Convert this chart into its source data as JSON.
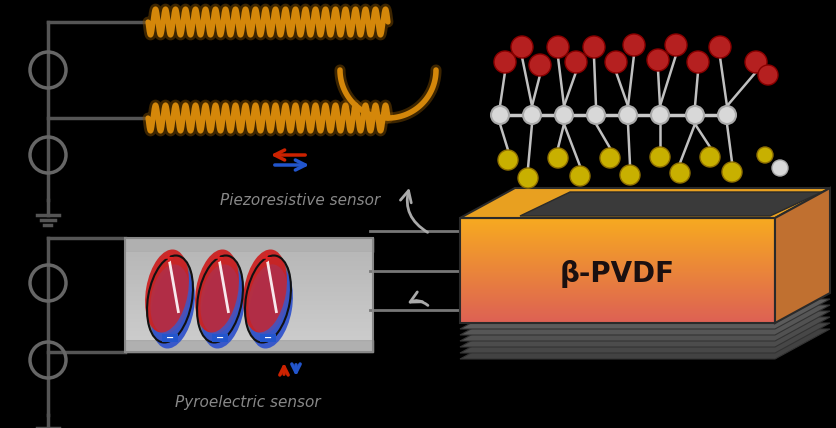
{
  "background_color": "#000000",
  "pvdf_label": "β-PVDF",
  "pvdf_label_fontsize": 20,
  "piezo_label": "Piezoresistive sensor",
  "pyro_label": "Pyroelectric sensor",
  "sensor_label_color": "#888888",
  "sensor_label_fontsize": 11,
  "coil_color": "#d4870a",
  "circuit_color": "#555555",
  "arrow_red": "#cc2200",
  "arrow_blue": "#2255cc",
  "curved_arrow_color": "#aaaaaa",
  "mol_red": "#b52020",
  "mol_yellow": "#c8b000",
  "mol_white": "#cccccc",
  "mol_backbone": "#c0c0c0"
}
